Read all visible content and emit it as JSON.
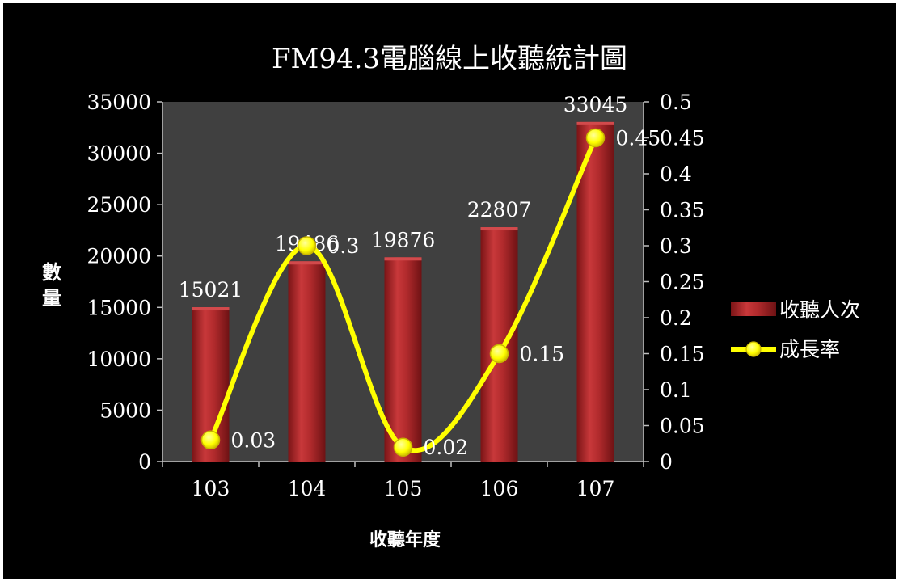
{
  "chart_data": {
    "type": "bar",
    "title": "FM94.3電腦線上收聽統計圖",
    "xlabel": "收聽年度",
    "ylabel": "數量",
    "y2label": "",
    "categories": [
      "103",
      "104",
      "105",
      "106",
      "107"
    ],
    "series": [
      {
        "name": "收聽人次",
        "type": "bar",
        "axis": "left",
        "values": [
          15021,
          19486,
          19876,
          22807,
          33045
        ],
        "labels": [
          "15021",
          "19486",
          "19876",
          "22807",
          "33045"
        ],
        "color": "#b9282a"
      },
      {
        "name": "成長率",
        "type": "line",
        "axis": "right",
        "smooth": true,
        "values": [
          0.03,
          0.3,
          0.02,
          0.15,
          0.45
        ],
        "labels": [
          "0.03",
          "0.3",
          "0.02",
          "0.15",
          "0.45"
        ],
        "color": "#ffff00"
      }
    ],
    "ylim": [
      0,
      35000
    ],
    "yticks": [
      "0",
      "5000",
      "10000",
      "15000",
      "20000",
      "25000",
      "30000",
      "35000"
    ],
    "y2lim": [
      0,
      0.5
    ],
    "y2ticks": [
      "0",
      "0.05",
      "0.1",
      "0.15",
      "0.2",
      "0.25",
      "0.3",
      "0.35",
      "0.4",
      "0.45",
      "0.5"
    ],
    "grid": false,
    "legend_position": "right",
    "plot_background": "#404040",
    "background": "#000000"
  }
}
